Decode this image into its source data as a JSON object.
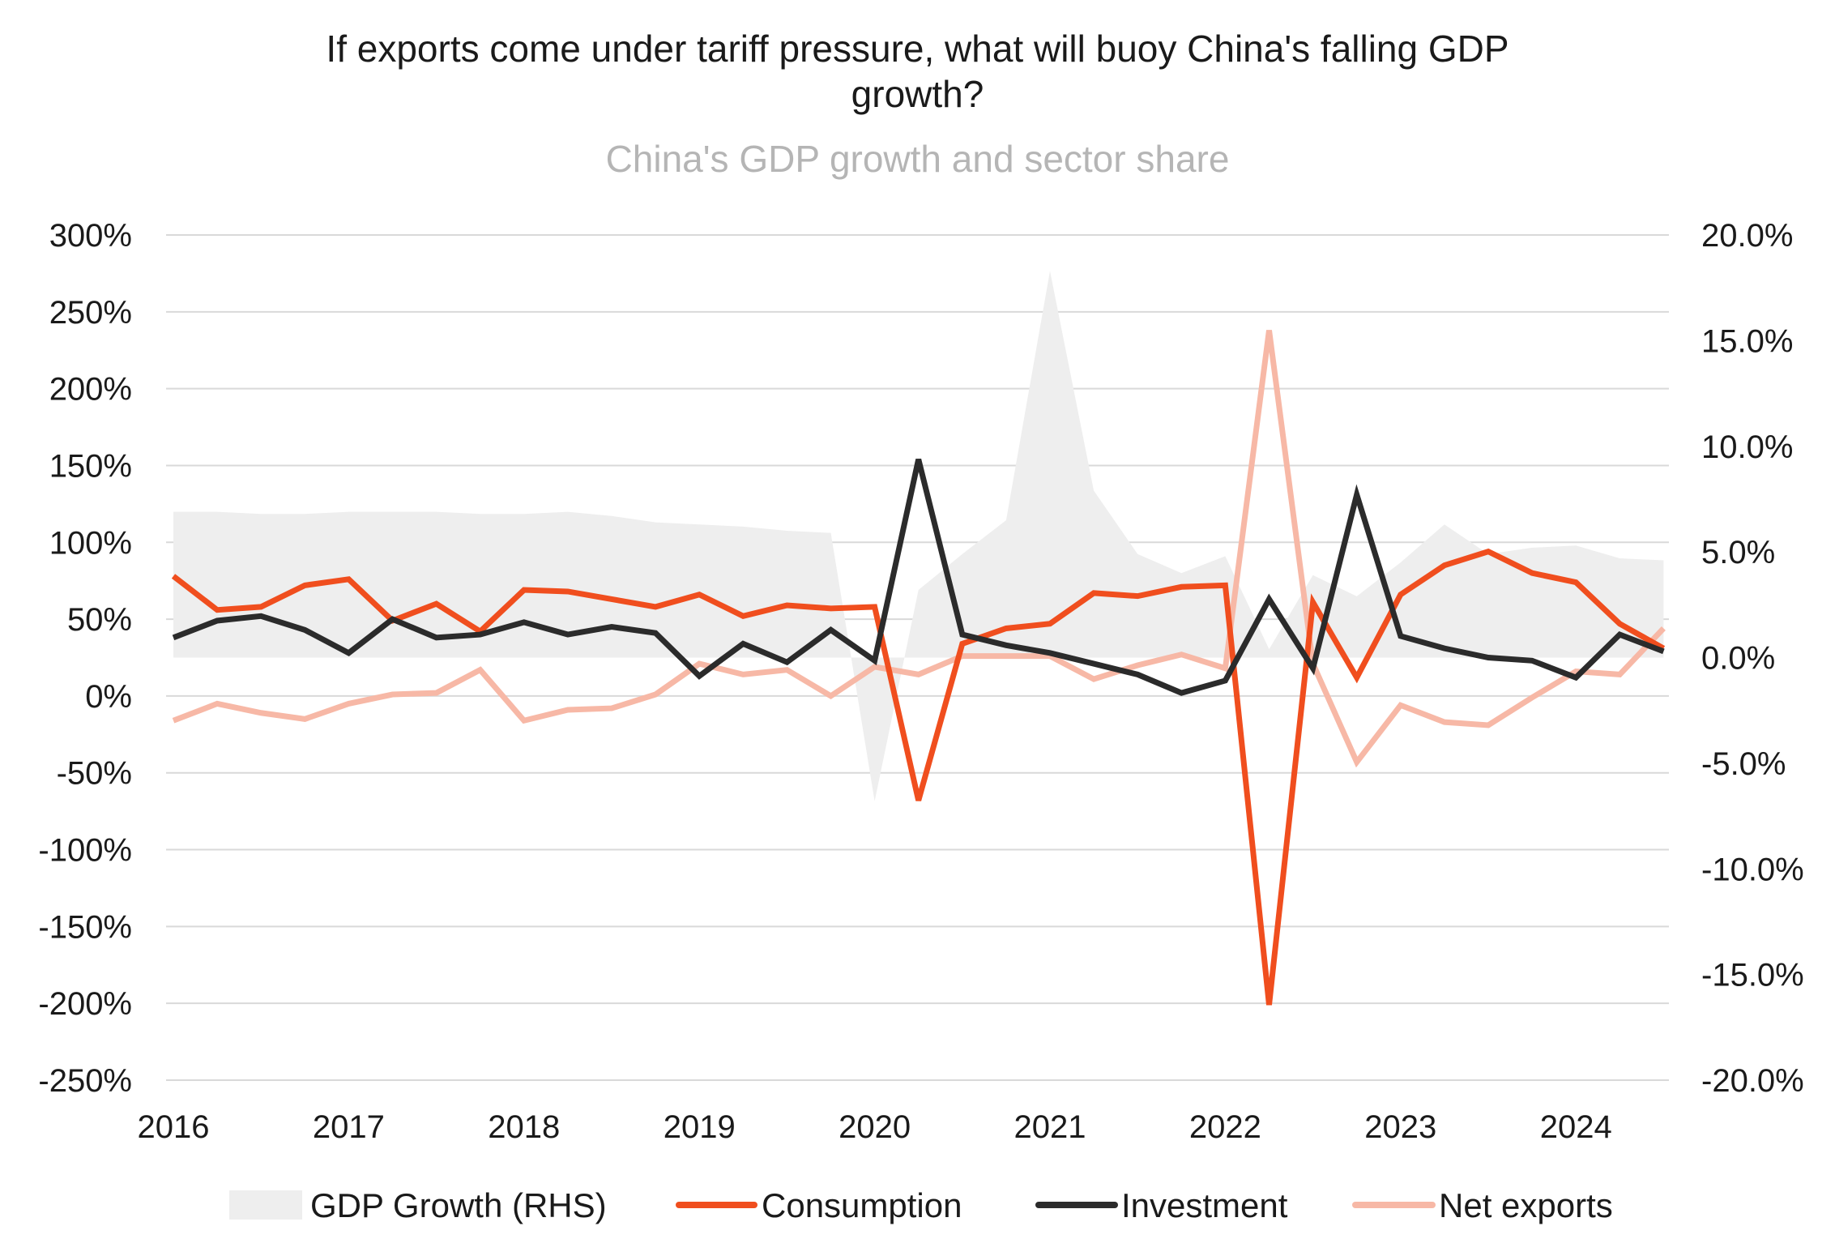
{
  "chart_data": {
    "type": "line",
    "title": "If exports come under tariff pressure, what will buoy China's falling GDP growth?",
    "title_lines": [
      "If exports come under tariff pressure, what will buoy China's falling GDP",
      "growth?"
    ],
    "subtitle": "China's GDP growth and sector share",
    "x_tick_labels": [
      "2016",
      "2017",
      "2018",
      "2019",
      "2020",
      "2021",
      "2022",
      "2023",
      "2024"
    ],
    "y_left": {
      "ticks": [
        300,
        250,
        200,
        150,
        100,
        50,
        0,
        -50,
        -100,
        -150,
        -200,
        -250
      ],
      "tick_labels": [
        "300%",
        "250%",
        "200%",
        "150%",
        "100%",
        "50%",
        "0%",
        "-50%",
        "-100%",
        "-150%",
        "-200%",
        "-250%"
      ],
      "ylim": [
        -250,
        300
      ]
    },
    "y_right": {
      "ticks": [
        20,
        15,
        10,
        5,
        0,
        -5,
        -10,
        -15,
        -20
      ],
      "tick_labels": [
        "20.0%",
        "15.0%",
        "10.0%",
        "5.0%",
        "0.0%",
        "-5.0%",
        "-10.0%",
        "-15.0%",
        "-20.0%"
      ],
      "ylim": [
        -20,
        20
      ]
    },
    "x": [
      "2016Q1",
      "2016Q2",
      "2016Q3",
      "2016Q4",
      "2017Q1",
      "2017Q2",
      "2017Q3",
      "2017Q4",
      "2018Q1",
      "2018Q2",
      "2018Q3",
      "2018Q4",
      "2019Q1",
      "2019Q2",
      "2019Q3",
      "2019Q4",
      "2020Q1",
      "2020Q2",
      "2020Q3",
      "2020Q4",
      "2021Q1",
      "2021Q2",
      "2021Q3",
      "2021Q4",
      "2022Q1",
      "2022Q2",
      "2022Q3",
      "2022Q4",
      "2023Q1",
      "2023Q2",
      "2023Q3",
      "2023Q4",
      "2024Q1",
      "2024Q2",
      "2024Q3"
    ],
    "grid": true,
    "legend_position": "bottom",
    "series": [
      {
        "name": "GDP Growth (RHS)",
        "type": "area",
        "axis": "right",
        "color": "#eeeeee",
        "values": [
          6.9,
          6.9,
          6.8,
          6.8,
          6.9,
          6.9,
          6.9,
          6.8,
          6.8,
          6.9,
          6.7,
          6.4,
          6.3,
          6.2,
          6.0,
          5.9,
          -6.8,
          3.2,
          4.9,
          6.5,
          18.3,
          7.9,
          4.9,
          4.0,
          4.8,
          0.4,
          3.9,
          2.9,
          4.5,
          6.3,
          4.9,
          5.2,
          5.3,
          4.7,
          4.6
        ]
      },
      {
        "name": "Consumption",
        "type": "line",
        "axis": "left",
        "color": "#f04e1e",
        "values": [
          78,
          56,
          58,
          72,
          76,
          49,
          60,
          42,
          69,
          68,
          63,
          58,
          66,
          52,
          59,
          57,
          58,
          -68,
          34,
          44,
          47,
          67,
          65,
          71,
          72,
          -201,
          61,
          12,
          66,
          85,
          94,
          80,
          74,
          47,
          31
        ]
      },
      {
        "name": "Investment",
        "type": "line",
        "axis": "left",
        "color": "#2b2b2b",
        "values": [
          38,
          49,
          52,
          43,
          28,
          50,
          38,
          40,
          48,
          40,
          45,
          41,
          13,
          34,
          22,
          43,
          23,
          154,
          40,
          33,
          28,
          21,
          14,
          2,
          10,
          63,
          18,
          131,
          39,
          31,
          25,
          23,
          12,
          40,
          29
        ]
      },
      {
        "name": "Net exports",
        "type": "line",
        "axis": "left",
        "color": "#f7b8a6",
        "values": [
          -16,
          -5,
          -11,
          -15,
          -5,
          1,
          2,
          17,
          -16,
          -9,
          -8,
          1,
          21,
          14,
          17,
          0,
          19,
          14,
          26,
          26,
          26,
          11,
          20,
          27,
          18,
          238,
          21,
          -43,
          -6,
          -17,
          -19,
          -1,
          16,
          14,
          44
        ]
      }
    ]
  }
}
